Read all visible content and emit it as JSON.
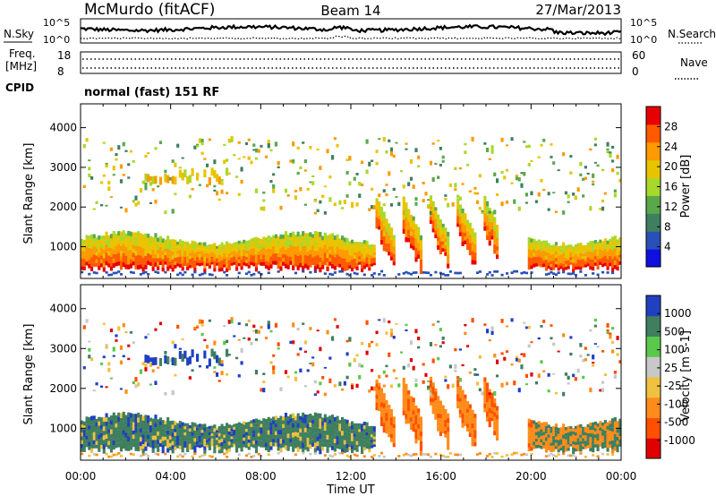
{
  "header": {
    "station": "McMurdo (fitACF)",
    "beam": "Beam 14",
    "date": "27/Mar/2013"
  },
  "top_panel": {
    "nsky_label": "N.Sky",
    "nsky_ticks": [
      "10^5",
      "10^0"
    ],
    "nsearch_label": "N.Search",
    "nsearch_ticks": [
      "10^5",
      "10^0"
    ],
    "freq_label": "Freq.",
    "freq_unit": "[MHz]",
    "freq_ticks": [
      "18",
      "8"
    ],
    "nave_label": "Nave",
    "nave_ticks": [
      "60",
      "0"
    ],
    "cpid_label": "CPID",
    "cpid_value": "normal (fast) 151 RF"
  },
  "x_axis": {
    "label": "Time UT",
    "ticks": [
      "00:00",
      "04:00",
      "08:00",
      "12:00",
      "16:00",
      "20:00",
      "00:00"
    ],
    "range_hours": [
      0,
      24
    ]
  },
  "chart_data": [
    {
      "type": "heatmap",
      "quantity": "Power",
      "ylabel": "Slant Range [km]",
      "yticks": [
        "1000",
        "2000",
        "3000",
        "4000"
      ],
      "ylim": [
        200,
        4600
      ],
      "xlim": [
        0,
        24
      ],
      "colorbar": {
        "label": "Power [dB]",
        "ticks": [
          "4",
          "8",
          "12",
          "16",
          "20",
          "24",
          "28"
        ],
        "range": [
          0,
          32
        ],
        "colors": [
          "#1010e0",
          "#2850b8",
          "#3f7f5f",
          "#5aa84c",
          "#a8d82a",
          "#e8c400",
          "#ff9a00",
          "#ff5a00",
          "#e80000"
        ]
      }
    },
    {
      "type": "heatmap",
      "quantity": "Velocity",
      "ylabel": "Slant Range [km]",
      "yticks": [
        "1000",
        "2000",
        "3000",
        "4000"
      ],
      "ylim": [
        200,
        4600
      ],
      "xlim": [
        0,
        24
      ],
      "colorbar": {
        "label": "Velocity [m s-1]",
        "ticks": [
          "1000",
          "500",
          "100",
          "25",
          "-25",
          "-100",
          "-500",
          "-1000"
        ],
        "colors": [
          "#2040c0",
          "#3f7f5f",
          "#5ac84a",
          "#c8c8c8",
          "#f0c040",
          "#ff8c1a",
          "#ff5000",
          "#e00000"
        ]
      }
    }
  ]
}
